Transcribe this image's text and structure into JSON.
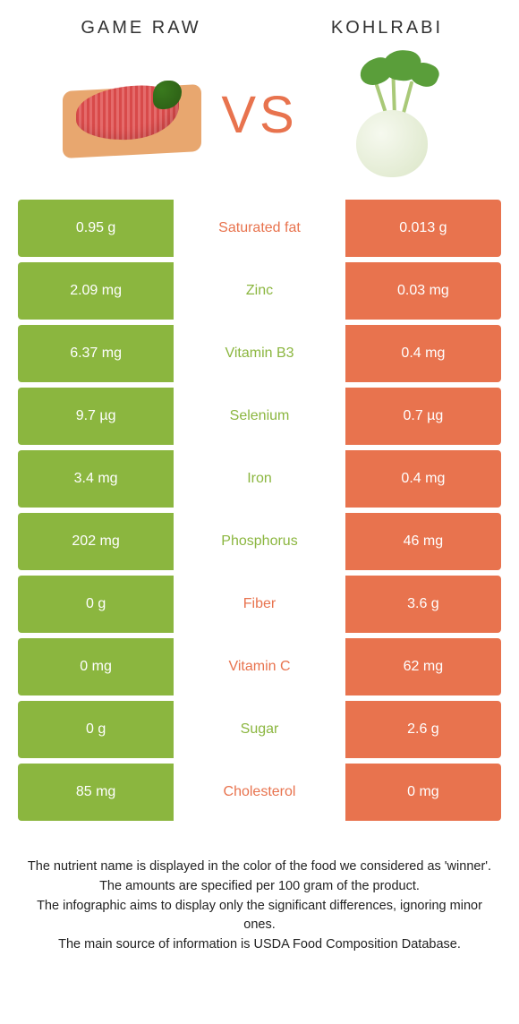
{
  "header": {
    "left_title": "GAME RAW",
    "right_title": "KOHLRABI",
    "vs_label": "VS"
  },
  "colors": {
    "left": "#8bb63f",
    "right": "#e8734e",
    "left_dim": "#a6c86e",
    "right_dim": "#ed9276",
    "vs_text": "#e8734e"
  },
  "rows": [
    {
      "left": "0.95 g",
      "label": "Saturated fat",
      "right": "0.013 g",
      "winner": "right"
    },
    {
      "left": "2.09 mg",
      "label": "Zinc",
      "right": "0.03 mg",
      "winner": "left"
    },
    {
      "left": "6.37 mg",
      "label": "Vitamin B3",
      "right": "0.4 mg",
      "winner": "left"
    },
    {
      "left": "9.7 µg",
      "label": "Selenium",
      "right": "0.7 µg",
      "winner": "left"
    },
    {
      "left": "3.4 mg",
      "label": "Iron",
      "right": "0.4 mg",
      "winner": "left"
    },
    {
      "left": "202 mg",
      "label": "Phosphorus",
      "right": "46 mg",
      "winner": "left"
    },
    {
      "left": "0 g",
      "label": "Fiber",
      "right": "3.6 g",
      "winner": "right"
    },
    {
      "left": "0 mg",
      "label": "Vitamin C",
      "right": "62 mg",
      "winner": "right"
    },
    {
      "left": "0 g",
      "label": "Sugar",
      "right": "2.6 g",
      "winner": "left"
    },
    {
      "left": "85 mg",
      "label": "Cholesterol",
      "right": "0 mg",
      "winner": "right"
    }
  ],
  "footnotes": [
    "The nutrient name is displayed in the color of the food we considered as 'winner'.",
    "The amounts are specified per 100 gram of the product.",
    "The infographic aims to display only the significant differences, ignoring minor ones.",
    "The main source of information is USDA Food Composition Database."
  ]
}
